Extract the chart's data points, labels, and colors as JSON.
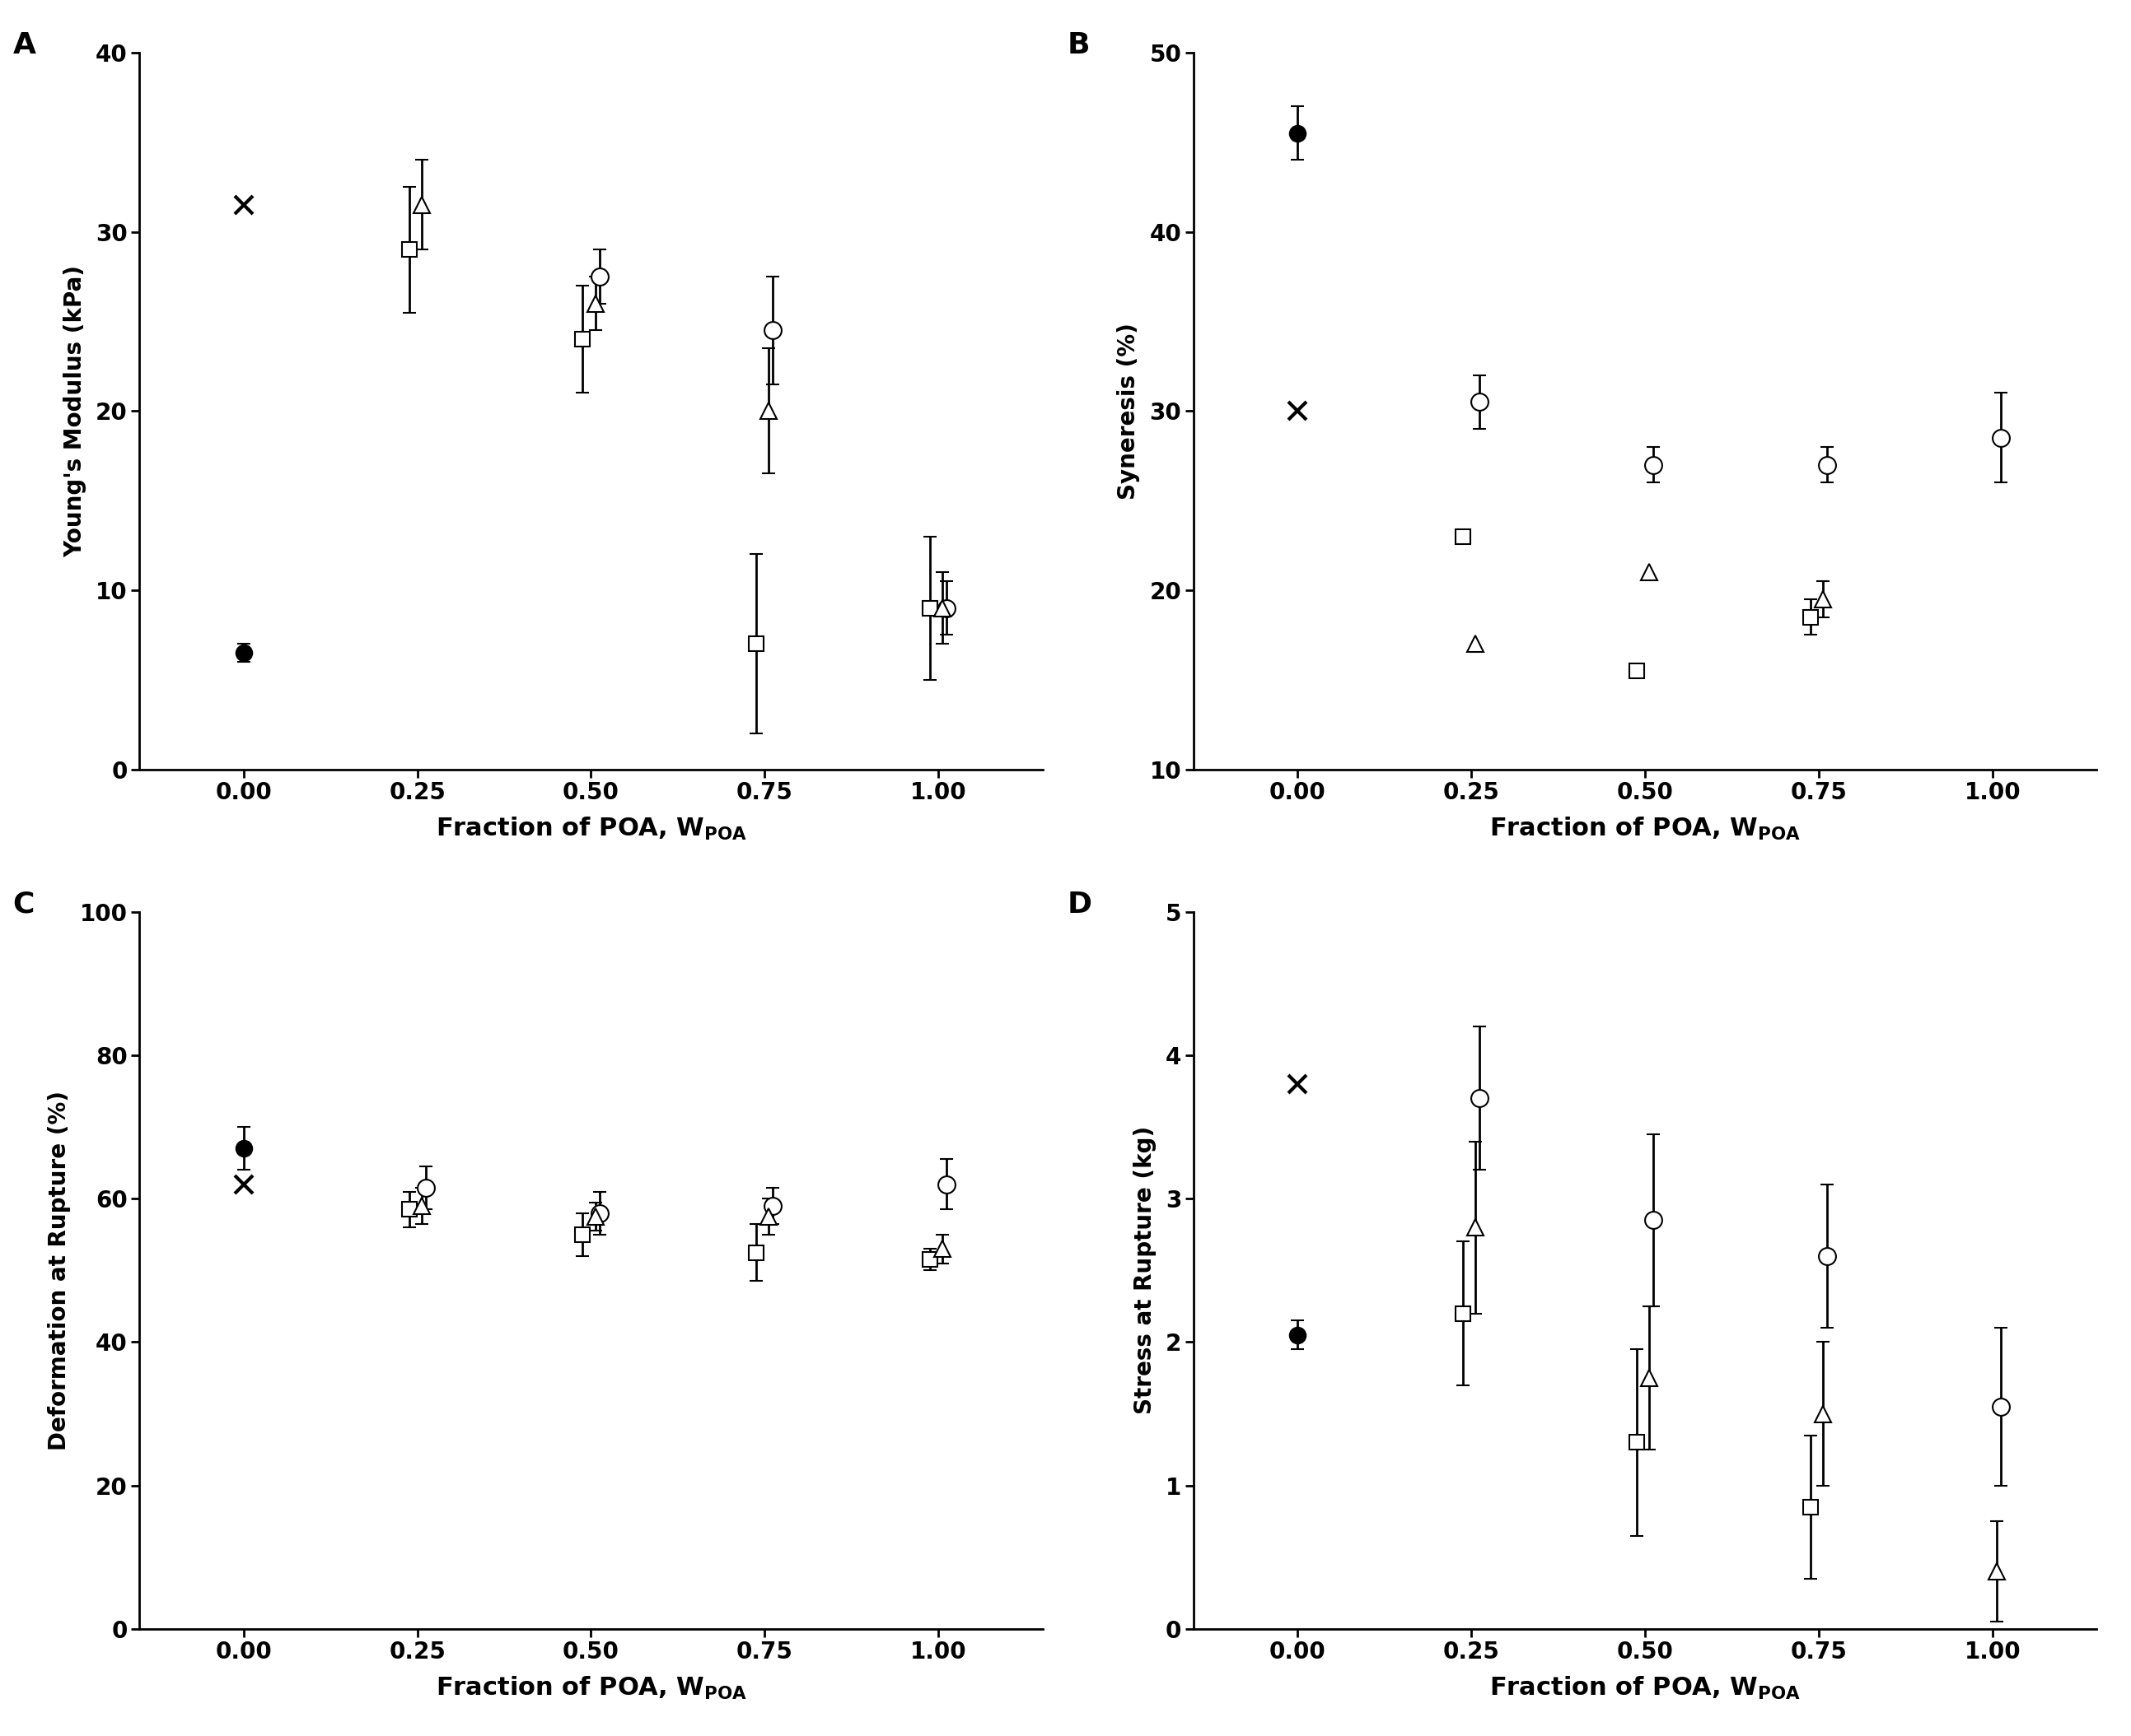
{
  "x": [
    0.0,
    0.25,
    0.5,
    0.75,
    1.0
  ],
  "panel_labels": [
    "A",
    "B",
    "C",
    "D"
  ],
  "A": {
    "ylabel": "Young's Modulus (kPa)",
    "ylim": [
      0,
      40
    ],
    "yticks": [
      0,
      10,
      20,
      30,
      40
    ],
    "series": {
      "filled_circle": {
        "y": [
          6.5,
          null,
          null,
          null,
          null
        ],
        "yerr": [
          0.5,
          null,
          null,
          null,
          null
        ]
      },
      "x_mark": {
        "y": [
          31.5,
          null,
          null,
          null,
          null
        ],
        "yerr": [
          null,
          null,
          null,
          null,
          null
        ]
      },
      "open_circle": {
        "y": [
          null,
          null,
          27.5,
          24.5,
          9.0
        ],
        "yerr": [
          null,
          null,
          1.5,
          3.0,
          1.5
        ]
      },
      "open_square": {
        "y": [
          null,
          29.0,
          24.0,
          7.0,
          9.0
        ],
        "yerr": [
          null,
          3.5,
          3.0,
          5.0,
          4.0
        ]
      },
      "open_triangle": {
        "y": [
          null,
          31.5,
          26.0,
          20.0,
          9.0
        ],
        "yerr": [
          null,
          2.5,
          1.5,
          3.5,
          2.0
        ]
      }
    }
  },
  "B": {
    "ylabel": "Syneresis (%)",
    "ylim": [
      10,
      50
    ],
    "yticks": [
      10,
      20,
      30,
      40,
      50
    ],
    "series": {
      "filled_circle": {
        "y": [
          45.5,
          null,
          null,
          null,
          null
        ],
        "yerr": [
          1.5,
          null,
          null,
          null,
          null
        ]
      },
      "x_mark": {
        "y": [
          30.0,
          null,
          null,
          null,
          null
        ],
        "yerr": [
          null,
          null,
          null,
          null,
          null
        ]
      },
      "open_circle": {
        "y": [
          null,
          30.5,
          27.0,
          27.0,
          28.5
        ],
        "yerr": [
          null,
          1.5,
          1.0,
          1.0,
          2.5
        ]
      },
      "open_square": {
        "y": [
          null,
          23.0,
          15.5,
          18.5,
          null
        ],
        "yerr": [
          null,
          null,
          null,
          1.0,
          null
        ]
      },
      "open_triangle": {
        "y": [
          null,
          17.0,
          21.0,
          19.5,
          null
        ],
        "yerr": [
          null,
          null,
          null,
          1.0,
          null
        ]
      }
    }
  },
  "C": {
    "ylabel": "Deformation at Rupture (%)",
    "ylim": [
      0,
      100
    ],
    "yticks": [
      0,
      20,
      40,
      60,
      80,
      100
    ],
    "series": {
      "filled_circle": {
        "y": [
          67.0,
          null,
          null,
          null,
          null
        ],
        "yerr": [
          3.0,
          null,
          null,
          null,
          null
        ]
      },
      "x_mark": {
        "y": [
          62.0,
          null,
          null,
          null,
          null
        ],
        "yerr": [
          null,
          null,
          null,
          null,
          null
        ]
      },
      "open_circle": {
        "y": [
          null,
          61.5,
          58.0,
          59.0,
          62.0
        ],
        "yerr": [
          null,
          3.0,
          3.0,
          2.5,
          3.5
        ]
      },
      "open_square": {
        "y": [
          null,
          58.5,
          55.0,
          52.5,
          51.5
        ],
        "yerr": [
          null,
          2.5,
          3.0,
          4.0,
          1.5
        ]
      },
      "open_triangle": {
        "y": [
          null,
          59.0,
          57.5,
          57.5,
          53.0
        ],
        "yerr": [
          null,
          2.5,
          2.0,
          2.5,
          2.0
        ]
      }
    }
  },
  "D": {
    "ylabel": "Stress at Rupture (kg)",
    "ylim": [
      0,
      5
    ],
    "yticks": [
      0,
      1,
      2,
      3,
      4,
      5
    ],
    "series": {
      "filled_circle": {
        "y": [
          2.05,
          null,
          null,
          null,
          null
        ],
        "yerr": [
          0.1,
          null,
          null,
          null,
          null
        ]
      },
      "x_mark": {
        "y": [
          3.8,
          null,
          null,
          null,
          null
        ],
        "yerr": [
          null,
          null,
          null,
          null,
          null
        ]
      },
      "open_circle": {
        "y": [
          null,
          3.7,
          2.85,
          2.6,
          1.55
        ],
        "yerr": [
          null,
          0.5,
          0.6,
          0.5,
          0.55
        ]
      },
      "open_square": {
        "y": [
          null,
          2.2,
          1.3,
          0.85,
          null
        ],
        "yerr": [
          null,
          0.5,
          0.65,
          0.5,
          null
        ]
      },
      "open_triangle": {
        "y": [
          null,
          2.8,
          1.75,
          1.5,
          0.4
        ],
        "yerr": [
          null,
          0.6,
          0.5,
          0.5,
          0.35
        ]
      }
    }
  }
}
